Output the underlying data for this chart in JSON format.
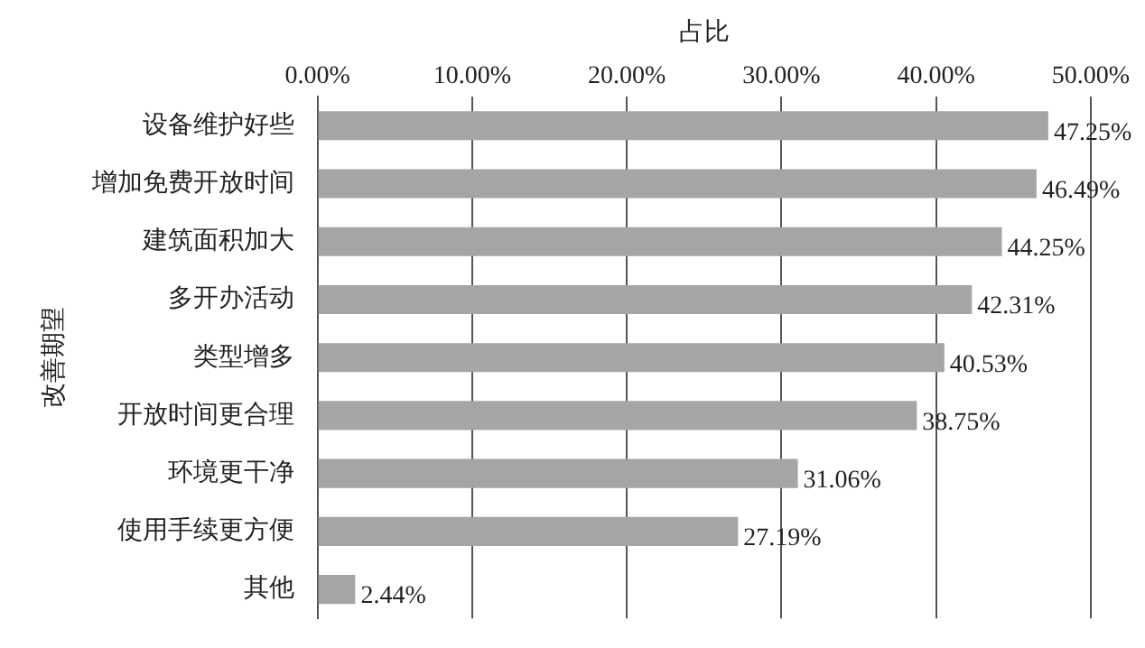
{
  "chart_data": {
    "type": "bar",
    "orientation": "horizontal",
    "xlabel": "占比",
    "ylabel": "改善期望",
    "categories": [
      "设备维护好些",
      "增加免费开放时间",
      "建筑面积加大",
      "多开办活动",
      "类型增多",
      "开放时间更合理",
      "环境更干净",
      "使用手续更方便",
      "其他"
    ],
    "values": [
      47.25,
      46.49,
      44.25,
      42.31,
      40.53,
      38.75,
      31.06,
      27.19,
      2.44
    ],
    "value_labels": [
      "47.25%",
      "46.49%",
      "44.25%",
      "42.31%",
      "40.53%",
      "38.75%",
      "31.06%",
      "27.19%",
      "2.44%"
    ],
    "color": "#a5a5a5",
    "xlim": [
      0,
      50
    ],
    "xticks": [
      {
        "value": 0,
        "label": "0.00%"
      },
      {
        "value": 10,
        "label": "10.00%"
      },
      {
        "value": 20,
        "label": "20.00%"
      },
      {
        "value": 30,
        "label": "30.00%"
      },
      {
        "value": 40,
        "label": "40.00%"
      },
      {
        "value": 50,
        "label": "50.00%"
      }
    ],
    "grid": "x",
    "legend": false
  }
}
